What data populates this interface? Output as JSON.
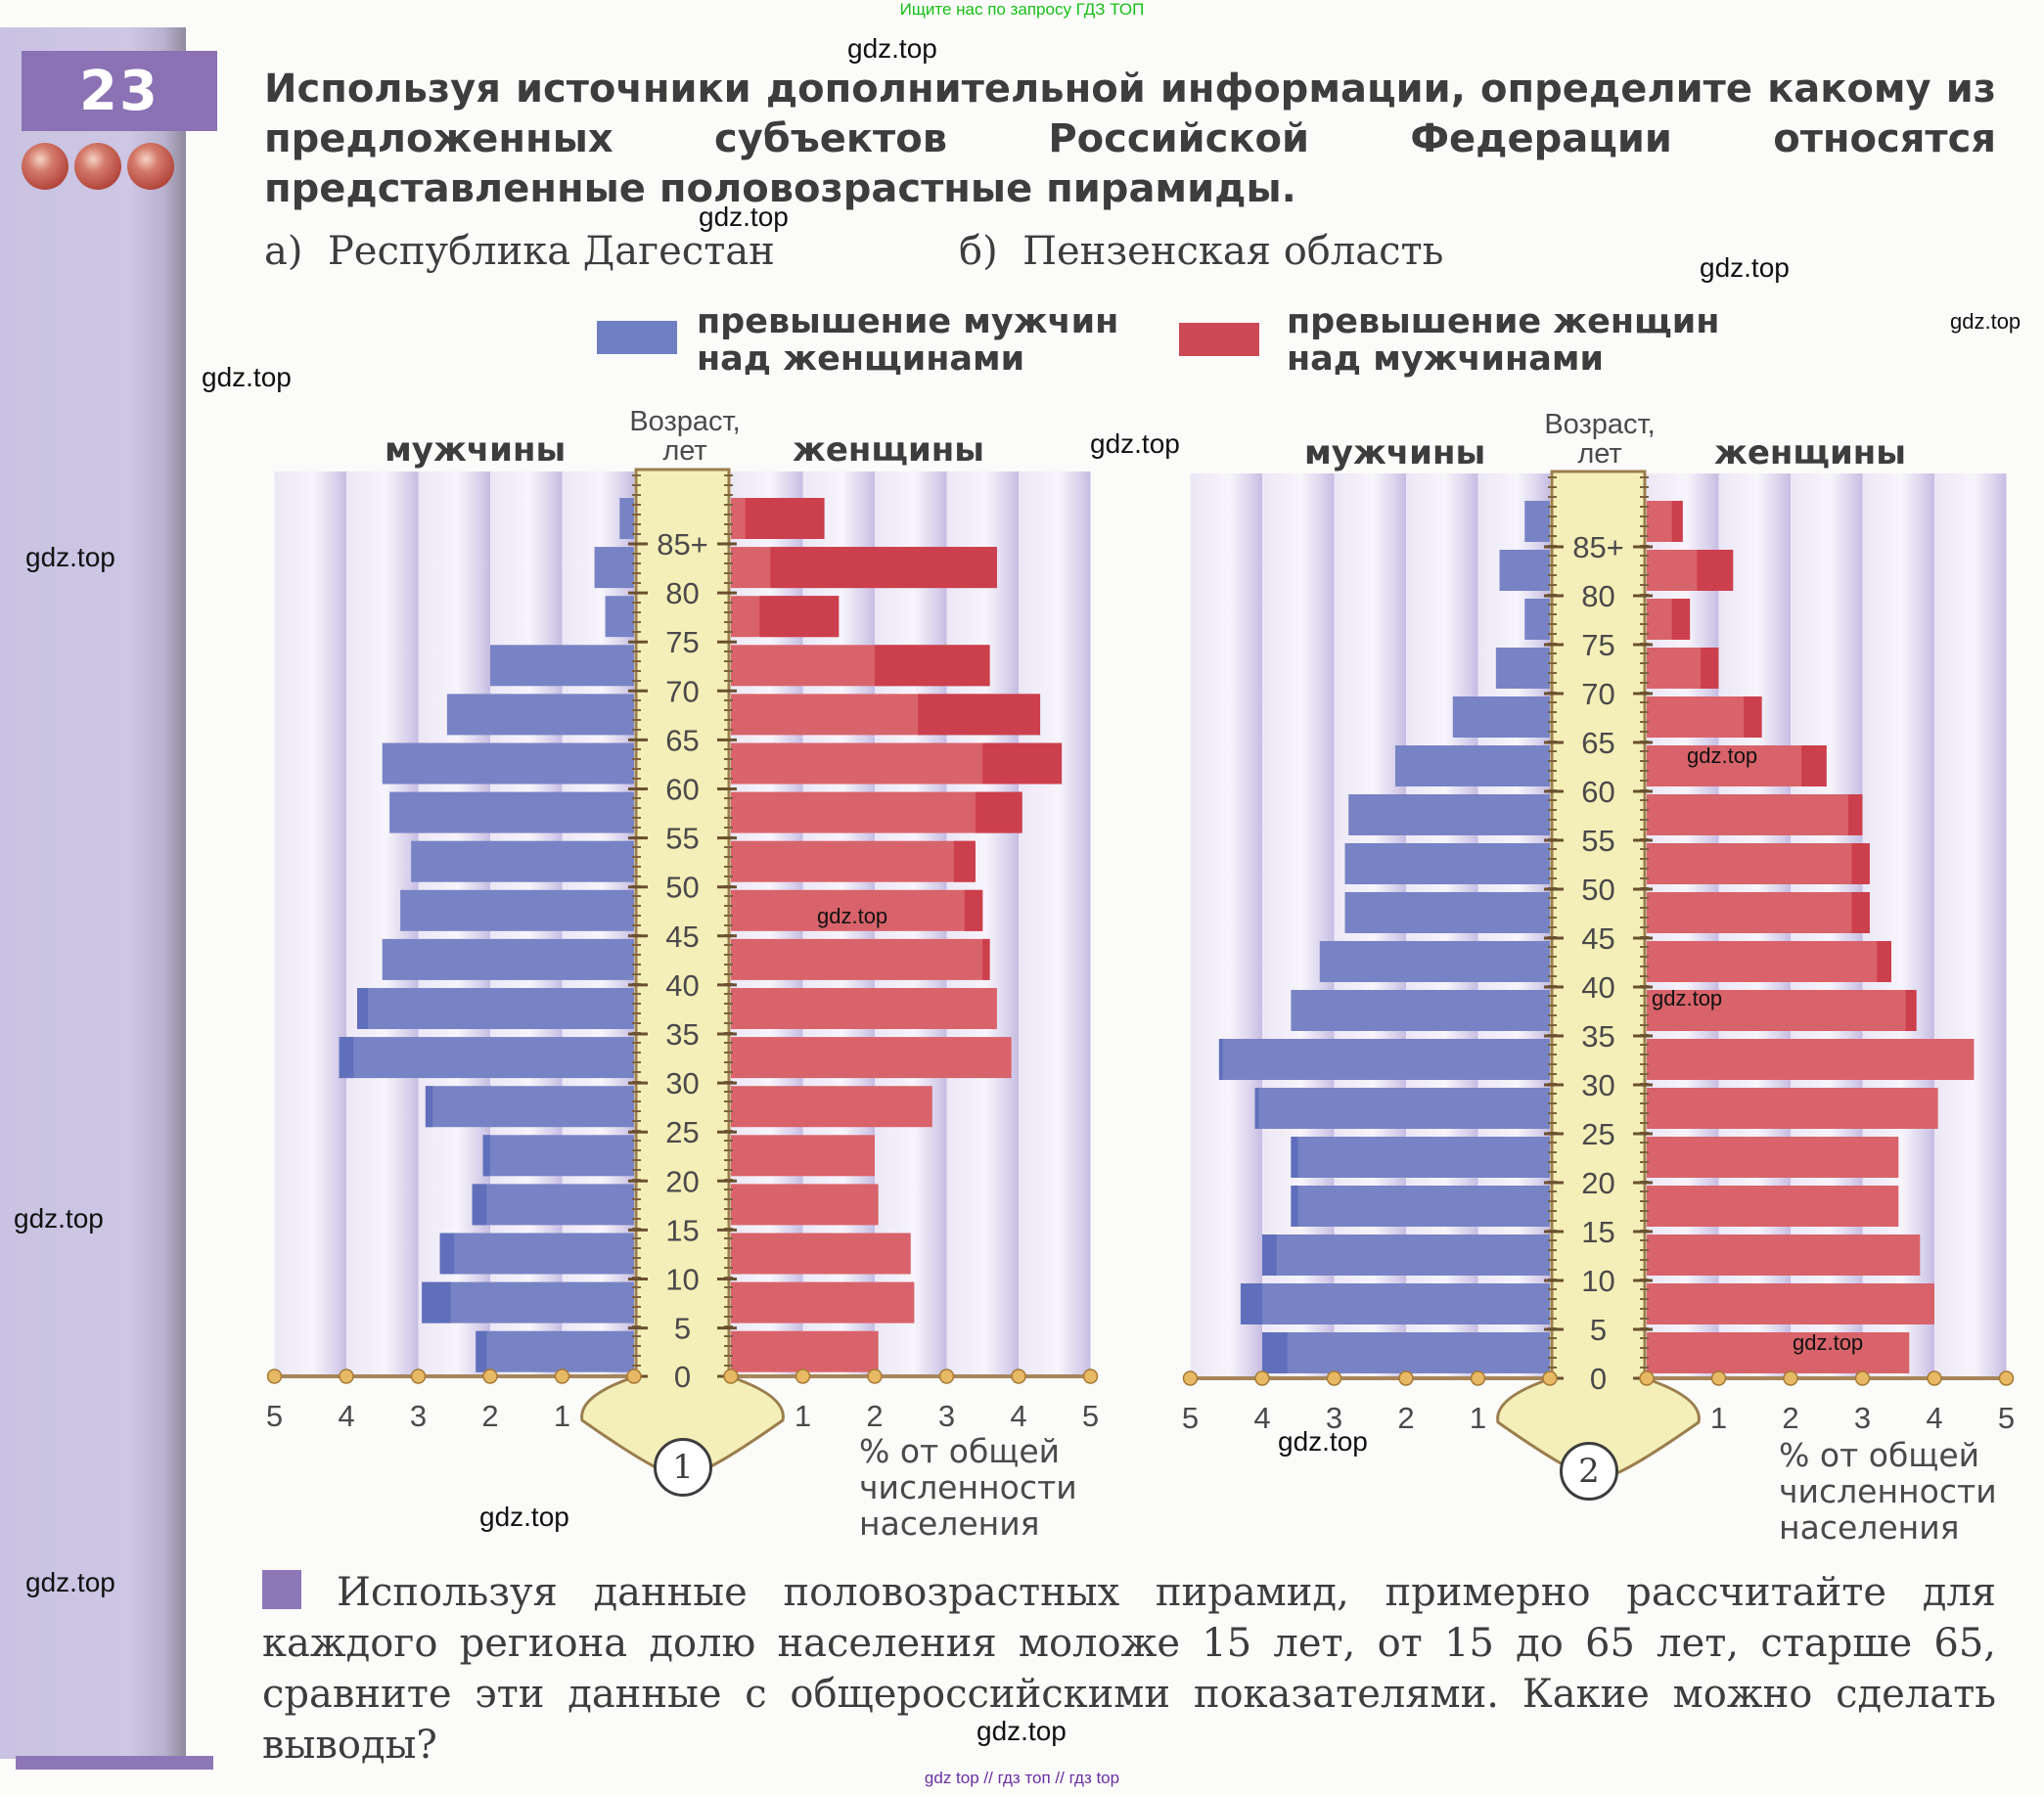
{
  "banner_top": "Ищите нас по запросу ГДЗ ТОП",
  "banner_bottom": "gdz top  //  гдз топ  //  гдз top",
  "watermark_text": "gdz.top",
  "task_number": "23",
  "difficulty_dots": 3,
  "task_text": "Используя источники дополнительной информации, определите какому из предложенных субъектов Российской Федерации относятся представленные половозрастные пирамиды.",
  "options": [
    {
      "marker": "а)",
      "label": "Республика Дагестан"
    },
    {
      "marker": "б)",
      "label": "Пензенская область"
    }
  ],
  "legend": [
    {
      "label_line1": "превышение мужчин",
      "label_line2": "над женщинами",
      "color": "#6f7fc4"
    },
    {
      "label_line1": "превышение женщин",
      "label_line2": "над мужчинами",
      "color": "#cc4a55"
    }
  ],
  "question_text": "Используя данные половозрастных пирамид, примерно рассчитайте для каждого региона долю населения моложе 15 лет, от 15 до 65 лет, старше 65, сравните эти данные с общероссийскими показателями. Какие можно сделать выводы?",
  "chart_data": [
    {
      "type": "bar",
      "subtype": "population-pyramid",
      "number": "1",
      "left_label": "мужчины",
      "right_label": "женщины",
      "ylabel_line1": "Возраст,",
      "ylabel_line2": "лет",
      "xlabel_line1": "% от общей",
      "xlabel_line2": "численности",
      "xlabel_line3": "населения",
      "xlim": [
        0,
        5
      ],
      "xticks": [
        "5",
        "4",
        "3",
        "2",
        "1",
        "1",
        "2",
        "3",
        "4",
        "5"
      ],
      "age_ticks": [
        "85+",
        "80",
        "75",
        "70",
        "65",
        "60",
        "55",
        "50",
        "45",
        "40",
        "35",
        "30",
        "25",
        "20",
        "15",
        "10",
        "5",
        "0"
      ],
      "age_groups": [
        "85+",
        "80-84",
        "75-79",
        "70-74",
        "65-69",
        "60-64",
        "55-59",
        "50-54",
        "45-49",
        "40-44",
        "35-39",
        "30-34",
        "25-29",
        "20-24",
        "15-19",
        "10-14",
        "5-9",
        "0-4"
      ],
      "colors": {
        "male": "#7783c4",
        "male_excess": "#5f6fbb",
        "female": "#d9636a",
        "female_excess": "#cc3f4c"
      },
      "series": [
        {
          "name": "мужчины",
          "values": [
            0.2,
            0.55,
            0.4,
            2.0,
            2.6,
            3.5,
            3.4,
            3.1,
            3.25,
            3.5,
            3.85,
            4.1,
            2.9,
            2.1,
            2.25,
            2.7,
            2.95,
            2.2
          ]
        },
        {
          "name": "женщины",
          "values": [
            1.3,
            3.7,
            1.5,
            3.6,
            4.3,
            4.6,
            4.05,
            3.4,
            3.5,
            3.6,
            3.7,
            3.9,
            2.8,
            2.0,
            2.05,
            2.5,
            2.55,
            2.05
          ]
        }
      ]
    },
    {
      "type": "bar",
      "subtype": "population-pyramid",
      "number": "2",
      "left_label": "мужчины",
      "right_label": "женщины",
      "ylabel_line1": "Возраст,",
      "ylabel_line2": "лет",
      "xlabel_line1": "% от общей",
      "xlabel_line2": "численности",
      "xlabel_line3": "населения",
      "xlim": [
        0,
        5
      ],
      "xticks": [
        "5",
        "4",
        "3",
        "2",
        "1",
        "1",
        "2",
        "3",
        "4",
        "5"
      ],
      "age_ticks": [
        "85+",
        "80",
        "75",
        "70",
        "65",
        "60",
        "55",
        "50",
        "45",
        "40",
        "35",
        "30",
        "25",
        "20",
        "15",
        "10",
        "5",
        "0"
      ],
      "age_groups": [
        "85+",
        "80-84",
        "75-79",
        "70-74",
        "65-69",
        "60-64",
        "55-59",
        "50-54",
        "45-49",
        "40-44",
        "35-39",
        "30-34",
        "25-29",
        "20-24",
        "15-19",
        "10-14",
        "5-9",
        "0-4"
      ],
      "colors": {
        "male": "#7783c4",
        "male_excess": "#5f6fbb",
        "female": "#d9636a",
        "female_excess": "#cc3f4c"
      },
      "series": [
        {
          "name": "мужчины",
          "values": [
            0.35,
            0.7,
            0.35,
            0.75,
            1.35,
            2.15,
            2.8,
            2.85,
            2.85,
            3.2,
            3.6,
            4.6,
            4.1,
            3.6,
            3.6,
            4.0,
            4.3,
            4.0
          ]
        },
        {
          "name": "женщины",
          "values": [
            0.5,
            1.2,
            0.6,
            1.0,
            1.6,
            2.5,
            3.0,
            3.1,
            3.1,
            3.4,
            3.75,
            4.55,
            4.05,
            3.5,
            3.5,
            3.8,
            4.0,
            3.65
          ]
        }
      ]
    }
  ]
}
